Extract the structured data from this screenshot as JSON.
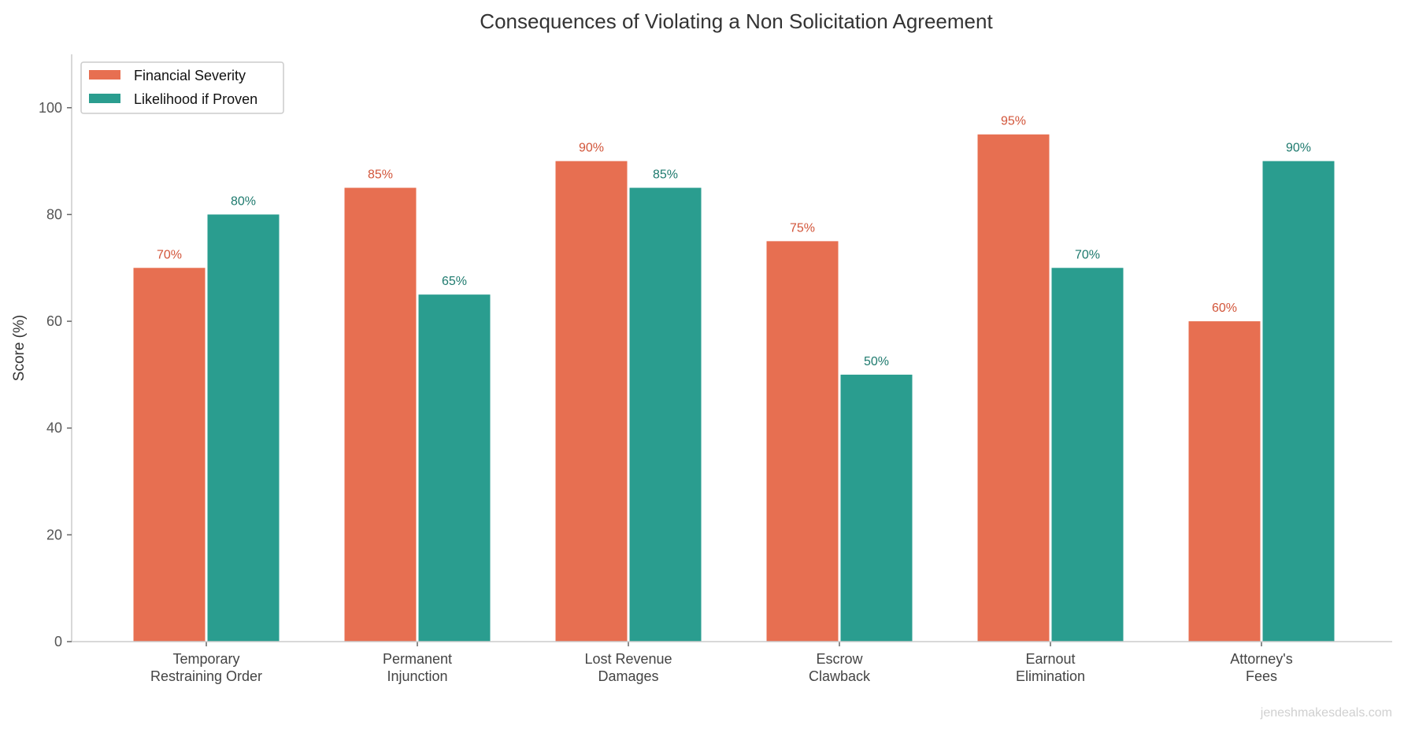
{
  "chart_data": {
    "type": "bar",
    "title": "Consequences of Violating a Non Solicitation Agreement",
    "xlabel": "",
    "ylabel": "Score (%)",
    "ylim": [
      0,
      110
    ],
    "yticks": [
      0,
      20,
      40,
      60,
      80,
      100
    ],
    "grid": false,
    "legend_position": "top-left",
    "categories": [
      [
        "Temporary",
        "Restraining Order"
      ],
      [
        "Permanent",
        "Injunction"
      ],
      [
        "Lost Revenue",
        "Damages"
      ],
      [
        "Escrow",
        "Clawback"
      ],
      [
        "Earnout",
        "Elimination"
      ],
      [
        "Attorney's",
        "Fees"
      ]
    ],
    "series": [
      {
        "name": "Financial Severity",
        "color": "#E76F51",
        "label_color": "#D2553A",
        "values": [
          70,
          85,
          90,
          75,
          95,
          60
        ]
      },
      {
        "name": "Likelihood if Proven",
        "color": "#2A9D8F",
        "label_color": "#1E7A6E",
        "values": [
          80,
          65,
          85,
          50,
          70,
          90
        ]
      }
    ],
    "value_label_suffix": "%"
  },
  "watermark": "jeneshmakesdeals.com"
}
